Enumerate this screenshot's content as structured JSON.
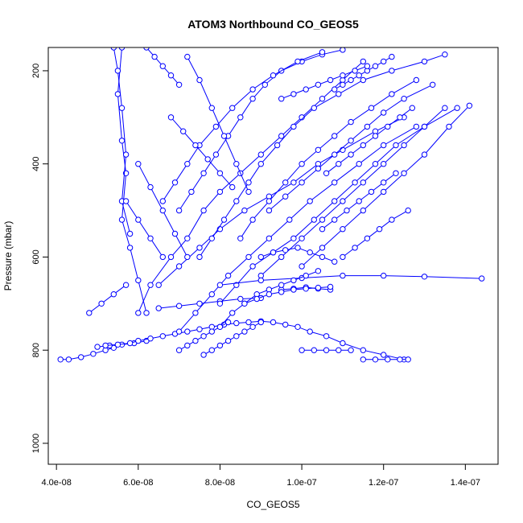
{
  "chart_data": {
    "type": "scatter",
    "title": "ATOM3 Northbound CO_GEOS5",
    "xlabel": "CO_GEOS5",
    "ylabel": "Pressure (mbar)",
    "xlim": [
      3.8e-08,
      1.48e-07
    ],
    "ylim": [
      1045,
      150
    ],
    "y_reversed": true,
    "x_ticks": [
      4e-08,
      6e-08,
      8e-08,
      1e-07,
      1.2e-07,
      1.4e-07
    ],
    "x_tick_labels": [
      "4.0e-08",
      "6.0e-08",
      "8.0e-08",
      "1.0e-07",
      "1.2e-07",
      "1.4e-07"
    ],
    "y_ticks": [
      200,
      400,
      600,
      800,
      1000
    ],
    "y_tick_labels": [
      "200",
      "400",
      "600",
      "800",
      "1000"
    ],
    "grid": false,
    "legend": "none",
    "marker": "open-circle",
    "connected": true,
    "color": "#0000ff",
    "series": [
      {
        "x": [
          4.1e-08,
          4.3e-08,
          4.6e-08,
          4.9e-08,
          5.2e-08,
          5.4e-08
        ],
        "y": [
          820,
          820,
          815,
          808,
          800,
          795
        ]
      },
      {
        "x": [
          5e-08,
          5.3e-08,
          5.6e-08,
          5.9e-08,
          6.2e-08
        ],
        "y": [
          793,
          790,
          788,
          785,
          780
        ]
      },
      {
        "x": [
          5.2e-08,
          5.5e-08,
          5.8e-08,
          6e-08,
          6.3e-08,
          6.6e-08,
          6.9e-08,
          7.2e-08,
          7.5e-08,
          7.8e-08,
          8.1e-08,
          8.4e-08,
          8.7e-08,
          9e-08,
          9.3e-08,
          9.6e-08,
          9.9e-08,
          1.02e-07,
          1.06e-07,
          1.1e-07,
          1.15e-07,
          1.2e-07,
          1.25e-07
        ],
        "y": [
          790,
          788,
          785,
          780,
          775,
          770,
          765,
          760,
          755,
          750,
          745,
          742,
          740,
          738,
          740,
          745,
          750,
          760,
          770,
          785,
          800,
          810,
          820
        ]
      },
      {
        "x": [
          1.15e-07,
          1.18e-07,
          1.21e-07,
          1.24e-07,
          1.26e-07
        ],
        "y": [
          820,
          820,
          820,
          820,
          820
        ]
      },
      {
        "x": [
          6.5e-08,
          7e-08,
          7.5e-08,
          8e-08,
          8.5e-08,
          9e-08
        ],
        "y": [
          710,
          705,
          700,
          695,
          690,
          688
        ]
      },
      {
        "x": [
          9.5e-08,
          9.8e-08,
          1.01e-07,
          1.04e-07,
          1.07e-07
        ],
        "y": [
          670,
          668,
          665,
          668,
          670
        ]
      },
      {
        "x": [
          1e-07,
          1.03e-07,
          1.06e-07,
          1.09e-07,
          1.12e-07
        ],
        "y": [
          800,
          800,
          800,
          800,
          800
        ]
      },
      {
        "x": [
          5.6e-08,
          5.5e-08,
          5.6e-08,
          5.7e-08,
          5.6e-08,
          5.8e-08,
          6e-08,
          6.2e-08
        ],
        "y": [
          150,
          250,
          350,
          420,
          520,
          580,
          650,
          720
        ]
      },
      {
        "x": [
          5.4e-08,
          5.5e-08,
          5.6e-08,
          5.7e-08,
          5.6e-08,
          5.8e-08
        ],
        "y": [
          150,
          200,
          280,
          380,
          480,
          550
        ]
      },
      {
        "x": [
          6e-08,
          6.3e-08,
          6.8e-08,
          7.2e-08,
          7.6e-08,
          8e-08,
          8.5e-08,
          9e-08,
          9.5e-08,
          1e-07,
          1.05e-07,
          1.1e-07,
          1.15e-07
        ],
        "y": [
          720,
          660,
          600,
          560,
          500,
          460,
          420,
          380,
          340,
          300,
          260,
          220,
          180
        ]
      },
      {
        "x": [
          6.5e-08,
          7e-08,
          7.5e-08,
          8e-08,
          8.6e-08,
          9.2e-08,
          9.8e-08,
          1.04e-07,
          1.1e-07,
          1.18e-07,
          1.25e-07
        ],
        "y": [
          660,
          620,
          580,
          540,
          500,
          470,
          440,
          400,
          370,
          330,
          300
        ]
      },
      {
        "x": [
          7e-08,
          7.4e-08,
          7.8e-08,
          8.2e-08,
          8.7e-08,
          9.2e-08,
          9.7e-08,
          1.02e-07,
          1.08e-07,
          1.14e-07,
          1.2e-07,
          1.28e-07
        ],
        "y": [
          760,
          720,
          680,
          640,
          600,
          560,
          520,
          480,
          440,
          400,
          360,
          320
        ]
      },
      {
        "x": [
          8e-08,
          8.4e-08,
          8.8e-08,
          9.3e-08,
          9.8e-08,
          1.03e-07,
          1.08e-07,
          1.13e-07,
          1.18e-07,
          1.23e-07,
          1.3e-07,
          1.38e-07
        ],
        "y": [
          700,
          660,
          620,
          590,
          560,
          520,
          480,
          440,
          400,
          360,
          320,
          280
        ]
      },
      {
        "x": [
          9e-08,
          9.5e-08,
          1e-07,
          1.05e-07,
          1.1e-07,
          1.15e-07,
          1.2e-07,
          1.25e-07,
          1.3e-07,
          1.35e-07
        ],
        "y": [
          640,
          600,
          560,
          520,
          480,
          440,
          400,
          360,
          320,
          280
        ]
      },
      {
        "x": [
          1e-07,
          1.05e-07,
          1.1e-07,
          1.15e-07,
          1.2e-07,
          1.25e-07,
          1.3e-07,
          1.36e-07,
          1.41e-07
        ],
        "y": [
          620,
          580,
          540,
          500,
          460,
          420,
          380,
          320,
          275
        ]
      },
      {
        "x": [
          8e-08,
          9e-08,
          1e-07,
          1.1e-07,
          1.2e-07,
          1.3e-07,
          1.44e-07
        ],
        "y": [
          660,
          650,
          645,
          640,
          640,
          642,
          646
        ]
      },
      {
        "x": [
          7e-08,
          7.3e-08,
          7.6e-08,
          7.9e-08,
          8.2e-08,
          8.5e-08,
          8.8e-08,
          9.1e-08,
          9.5e-08,
          1e-07,
          1.05e-07,
          1.1e-07
        ],
        "y": [
          500,
          460,
          420,
          380,
          340,
          300,
          260,
          230,
          200,
          180,
          165,
          155
        ]
      },
      {
        "x": [
          6.6e-08,
          6.9e-08,
          7.2e-08,
          7.5e-08,
          7.9e-08,
          8.3e-08,
          8.8e-08,
          9.3e-08,
          9.9e-08,
          1.05e-07
        ],
        "y": [
          480,
          440,
          400,
          360,
          320,
          280,
          240,
          210,
          180,
          160
        ]
      },
      {
        "x": [
          7.5e-08,
          7.8e-08,
          8.1e-08,
          8.4e-08,
          8.7e-08,
          9e-08,
          9.4e-08,
          9.8e-08,
          1.03e-07,
          1.09e-07,
          1.15e-07,
          1.22e-07,
          1.3e-07,
          1.35e-07
        ],
        "y": [
          600,
          560,
          520,
          480,
          440,
          400,
          360,
          320,
          280,
          250,
          220,
          200,
          180,
          165
        ]
      },
      {
        "x": [
          8.5e-08,
          8.8e-08,
          9.2e-08,
          9.6e-08,
          1e-07,
          1.04e-07,
          1.08e-07,
          1.12e-07,
          1.17e-07,
          1.22e-07,
          1.28e-07
        ],
        "y": [
          560,
          520,
          480,
          440,
          400,
          370,
          340,
          310,
          280,
          250,
          220
        ]
      },
      {
        "x": [
          9.2e-08,
          9.6e-08,
          1e-07,
          1.04e-07,
          1.08e-07,
          1.12e-07,
          1.16e-07,
          1.2e-07,
          1.25e-07,
          1.32e-07
        ],
        "y": [
          500,
          470,
          440,
          410,
          380,
          350,
          320,
          290,
          260,
          230
        ]
      },
      {
        "x": [
          7e-08,
          7.2e-08,
          7.4e-08,
          7.6e-08,
          7.8e-08,
          8e-08,
          8.2e-08
        ],
        "y": [
          800,
          790,
          780,
          770,
          760,
          750,
          740
        ]
      },
      {
        "x": [
          7.6e-08,
          7.8e-08,
          8e-08,
          8.2e-08,
          8.4e-08,
          8.6e-08,
          8.8e-08,
          9e-08
        ],
        "y": [
          810,
          800,
          790,
          780,
          770,
          760,
          750,
          740
        ]
      },
      {
        "x": [
          7.2e-08,
          7.5e-08,
          7.8e-08,
          8.1e-08,
          8.4e-08,
          8.7e-08
        ],
        "y": [
          170,
          220,
          280,
          340,
          400,
          460
        ]
      },
      {
        "x": [
          6e-08,
          6.3e-08,
          6.6e-08,
          6.9e-08,
          7.2e-08
        ],
        "y": [
          400,
          450,
          500,
          550,
          600
        ]
      },
      {
        "x": [
          5.7e-08,
          6e-08,
          6.3e-08,
          6.6e-08
        ],
        "y": [
          480,
          520,
          560,
          600
        ]
      },
      {
        "x": [
          4.8e-08,
          5.1e-08,
          5.4e-08,
          5.7e-08
        ],
        "y": [
          720,
          700,
          680,
          660
        ]
      },
      {
        "x": [
          8e-08,
          8.3e-08,
          8.6e-08,
          8.9e-08,
          9.2e-08,
          9.5e-08,
          9.8e-08,
          1.01e-07,
          1.04e-07
        ],
        "y": [
          750,
          720,
          700,
          680,
          670,
          660,
          650,
          640,
          630
        ]
      },
      {
        "x": [
          8.6e-08,
          8.9e-08,
          9.2e-08,
          9.5e-08,
          9.8e-08,
          1.01e-07,
          1.04e-07,
          1.07e-07
        ],
        "y": [
          700,
          690,
          680,
          675,
          670,
          668,
          666,
          664
        ]
      },
      {
        "x": [
          9e-08,
          9.3e-08,
          9.6e-08,
          9.9e-08,
          1.02e-07,
          1.05e-07,
          1.08e-07
        ],
        "y": [
          600,
          590,
          585,
          580,
          590,
          600,
          610
        ]
      },
      {
        "x": [
          1.06e-07,
          1.09e-07,
          1.12e-07,
          1.15e-07,
          1.18e-07,
          1.21e-07,
          1.24e-07,
          1.27e-07
        ],
        "y": [
          420,
          400,
          380,
          360,
          340,
          320,
          300,
          280
        ]
      },
      {
        "x": [
          1.08e-07,
          1.1e-07,
          1.12e-07,
          1.14e-07,
          1.16e-07,
          1.18e-07,
          1.2e-07,
          1.22e-07
        ],
        "y": [
          240,
          230,
          220,
          210,
          200,
          190,
          180,
          170
        ]
      },
      {
        "x": [
          9.5e-08,
          9.8e-08,
          1.01e-07,
          1.04e-07,
          1.07e-07,
          1.1e-07,
          1.13e-07,
          1.16e-07
        ],
        "y": [
          260,
          250,
          240,
          230,
          220,
          210,
          200,
          190
        ]
      },
      {
        "x": [
          6.2e-08,
          6.4e-08,
          6.6e-08,
          6.8e-08,
          7e-08
        ],
        "y": [
          150,
          170,
          190,
          210,
          230
        ]
      },
      {
        "x": [
          6.8e-08,
          7.1e-08,
          7.4e-08,
          7.7e-08,
          8e-08,
          8.3e-08
        ],
        "y": [
          300,
          330,
          360,
          390,
          420,
          450
        ]
      },
      {
        "x": [
          1.05e-07,
          1.08e-07,
          1.11e-07,
          1.14e-07,
          1.17e-07,
          1.2e-07,
          1.23e-07
        ],
        "y": [
          540,
          520,
          500,
          480,
          460,
          440,
          420
        ]
      },
      {
        "x": [
          1.1e-07,
          1.13e-07,
          1.16e-07,
          1.19e-07,
          1.22e-07,
          1.26e-07
        ],
        "y": [
          600,
          580,
          560,
          540,
          520,
          500
        ]
      }
    ]
  }
}
